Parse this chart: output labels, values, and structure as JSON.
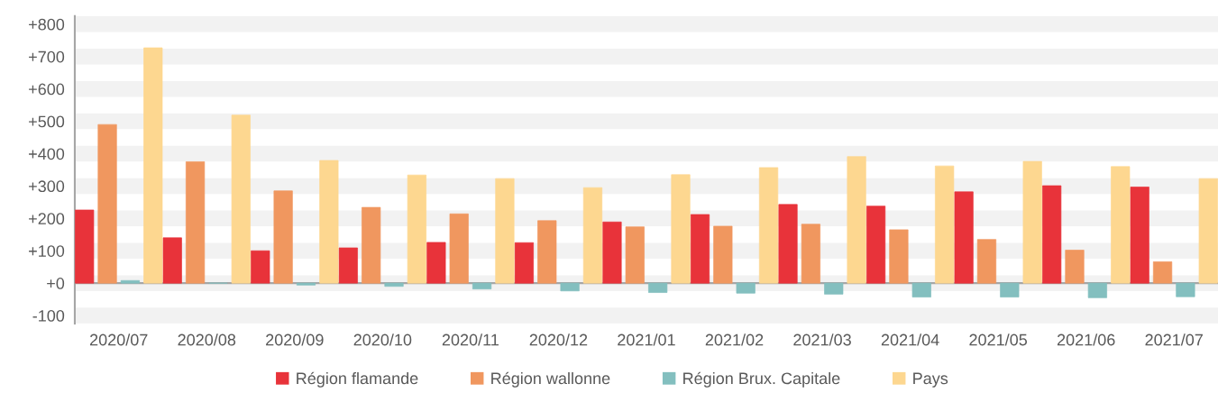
{
  "chart_data": {
    "type": "bar",
    "categories": [
      "2020/07",
      "2020/08",
      "2020/09",
      "2020/10",
      "2020/11",
      "2020/12",
      "2021/01",
      "2021/02",
      "2021/03",
      "2021/04",
      "2021/05",
      "2021/06",
      "2021/07"
    ],
    "series": [
      {
        "name": "Région flamande",
        "color": "#e8333a",
        "values": [
          226,
          140,
          100,
          109,
          126,
          125,
          189,
          212,
          243,
          238,
          282,
          301,
          297
        ]
      },
      {
        "name": "Région wallonne",
        "color": "#f0975f",
        "values": [
          490,
          375,
          285,
          234,
          214,
          193,
          174,
          176,
          182,
          165,
          135,
          102,
          66
        ]
      },
      {
        "name": "Région Brux. Capitale",
        "color": "#83bfbf",
        "values": [
          8,
          0,
          -6,
          -10,
          -18,
          -24,
          -29,
          -31,
          -34,
          -43,
          -43,
          -45,
          -42
        ]
      },
      {
        "name": "Pays",
        "color": "#fdd790",
        "values": [
          727,
          519,
          379,
          334,
          323,
          295,
          335,
          357,
          391,
          362,
          376,
          360,
          323
        ]
      }
    ],
    "ylim": [
      -125,
      825
    ],
    "yticks": [
      {
        "value": -100,
        "label": "-100"
      },
      {
        "value": 0,
        "label": "+0"
      },
      {
        "value": 100,
        "label": "+100"
      },
      {
        "value": 200,
        "label": "+200"
      },
      {
        "value": 300,
        "label": "+300"
      },
      {
        "value": 400,
        "label": "+400"
      },
      {
        "value": 500,
        "label": "+500"
      },
      {
        "value": 600,
        "label": "+600"
      },
      {
        "value": 700,
        "label": "+700"
      },
      {
        "value": 800,
        "label": "+800"
      }
    ],
    "grid": "y",
    "legend": "bottom"
  }
}
